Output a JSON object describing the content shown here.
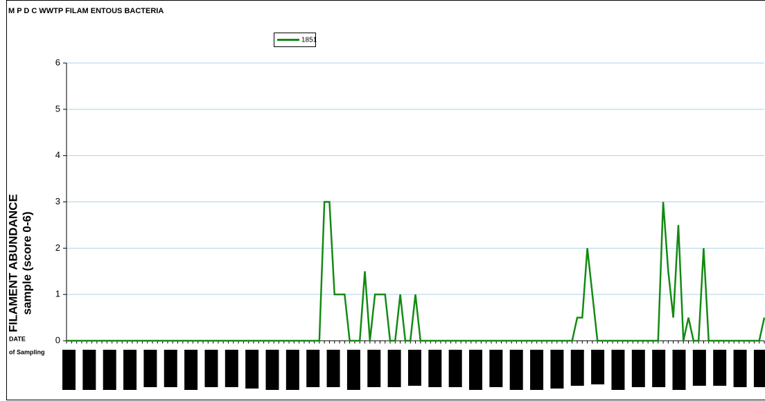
{
  "chart_data": {
    "type": "line",
    "title": "M P D C WWTP FILAM ENTOUS BACTERIA",
    "y_label": [
      "FILAMENT ABUNDANCE",
      "sample (score 0-6)"
    ],
    "x_label": [
      "DATE",
      "of Sampling"
    ],
    "categories": [
      null,
      null,
      null,
      null,
      null,
      null,
      null,
      null,
      null,
      null,
      null,
      null,
      null,
      null,
      null,
      null,
      null,
      null,
      null,
      null,
      null,
      null,
      null,
      null,
      null,
      null,
      null,
      null,
      null,
      null,
      null,
      null,
      null,
      null,
      null,
      null,
      null,
      null,
      null,
      null,
      null,
      null,
      null,
      null,
      null,
      null,
      null,
      null,
      null,
      null,
      null,
      null,
      null,
      null,
      null,
      null,
      null,
      null,
      null,
      null,
      null,
      null,
      null,
      null,
      null,
      null,
      null,
      null,
      null,
      null,
      null,
      null,
      null,
      null,
      null,
      null,
      null,
      null,
      null,
      null,
      null,
      null,
      null,
      null,
      null,
      null,
      null,
      null,
      null,
      null,
      null,
      null,
      null,
      null,
      null,
      null,
      null,
      null,
      null,
      null,
      null,
      null,
      null,
      null,
      null,
      null,
      null,
      null,
      null,
      null,
      null,
      null,
      null,
      null,
      null,
      null,
      null,
      null,
      null,
      null,
      null,
      null,
      null,
      null,
      null,
      null,
      null,
      null,
      null,
      null,
      null,
      null,
      null,
      null,
      null,
      null,
      null,
      null,
      null
    ],
    "series": [
      {
        "name": "1851",
        "color": "#138a13",
        "values": [
          0,
          0,
          0,
          0,
          0,
          0,
          0,
          0,
          0,
          0,
          0,
          0,
          0,
          0,
          0,
          0,
          0,
          0,
          0,
          0,
          0,
          0,
          0,
          0,
          0,
          0,
          0,
          0,
          0,
          0,
          0,
          0,
          0,
          0,
          0,
          0,
          0,
          0,
          0,
          0,
          0,
          0,
          0,
          0,
          0,
          0,
          0,
          0,
          0,
          0,
          0,
          3,
          3,
          1,
          1,
          1,
          0,
          0,
          0,
          1.5,
          0,
          1,
          1,
          1,
          0,
          0,
          1,
          0,
          0,
          1,
          0,
          0,
          0,
          0,
          0,
          0,
          0,
          0,
          0,
          0,
          0,
          0,
          0,
          0,
          0,
          0,
          0,
          0,
          0,
          0,
          0,
          0,
          0,
          0,
          0,
          0,
          0,
          0,
          0,
          0,
          0,
          0.5,
          0.5,
          2,
          1,
          0,
          0,
          0,
          0,
          0,
          0,
          0,
          0,
          0,
          0,
          0,
          0,
          0,
          3,
          1.5,
          0.5,
          2.5,
          0,
          0.5,
          0,
          0,
          2,
          0,
          0,
          0,
          0,
          0,
          0,
          0,
          0,
          0,
          0,
          0,
          0.5
        ]
      }
    ],
    "ylim": [
      0,
      6
    ],
    "yticks": [
      0,
      1,
      2,
      3,
      4,
      5,
      6
    ],
    "grid": true,
    "legend": "top"
  }
}
